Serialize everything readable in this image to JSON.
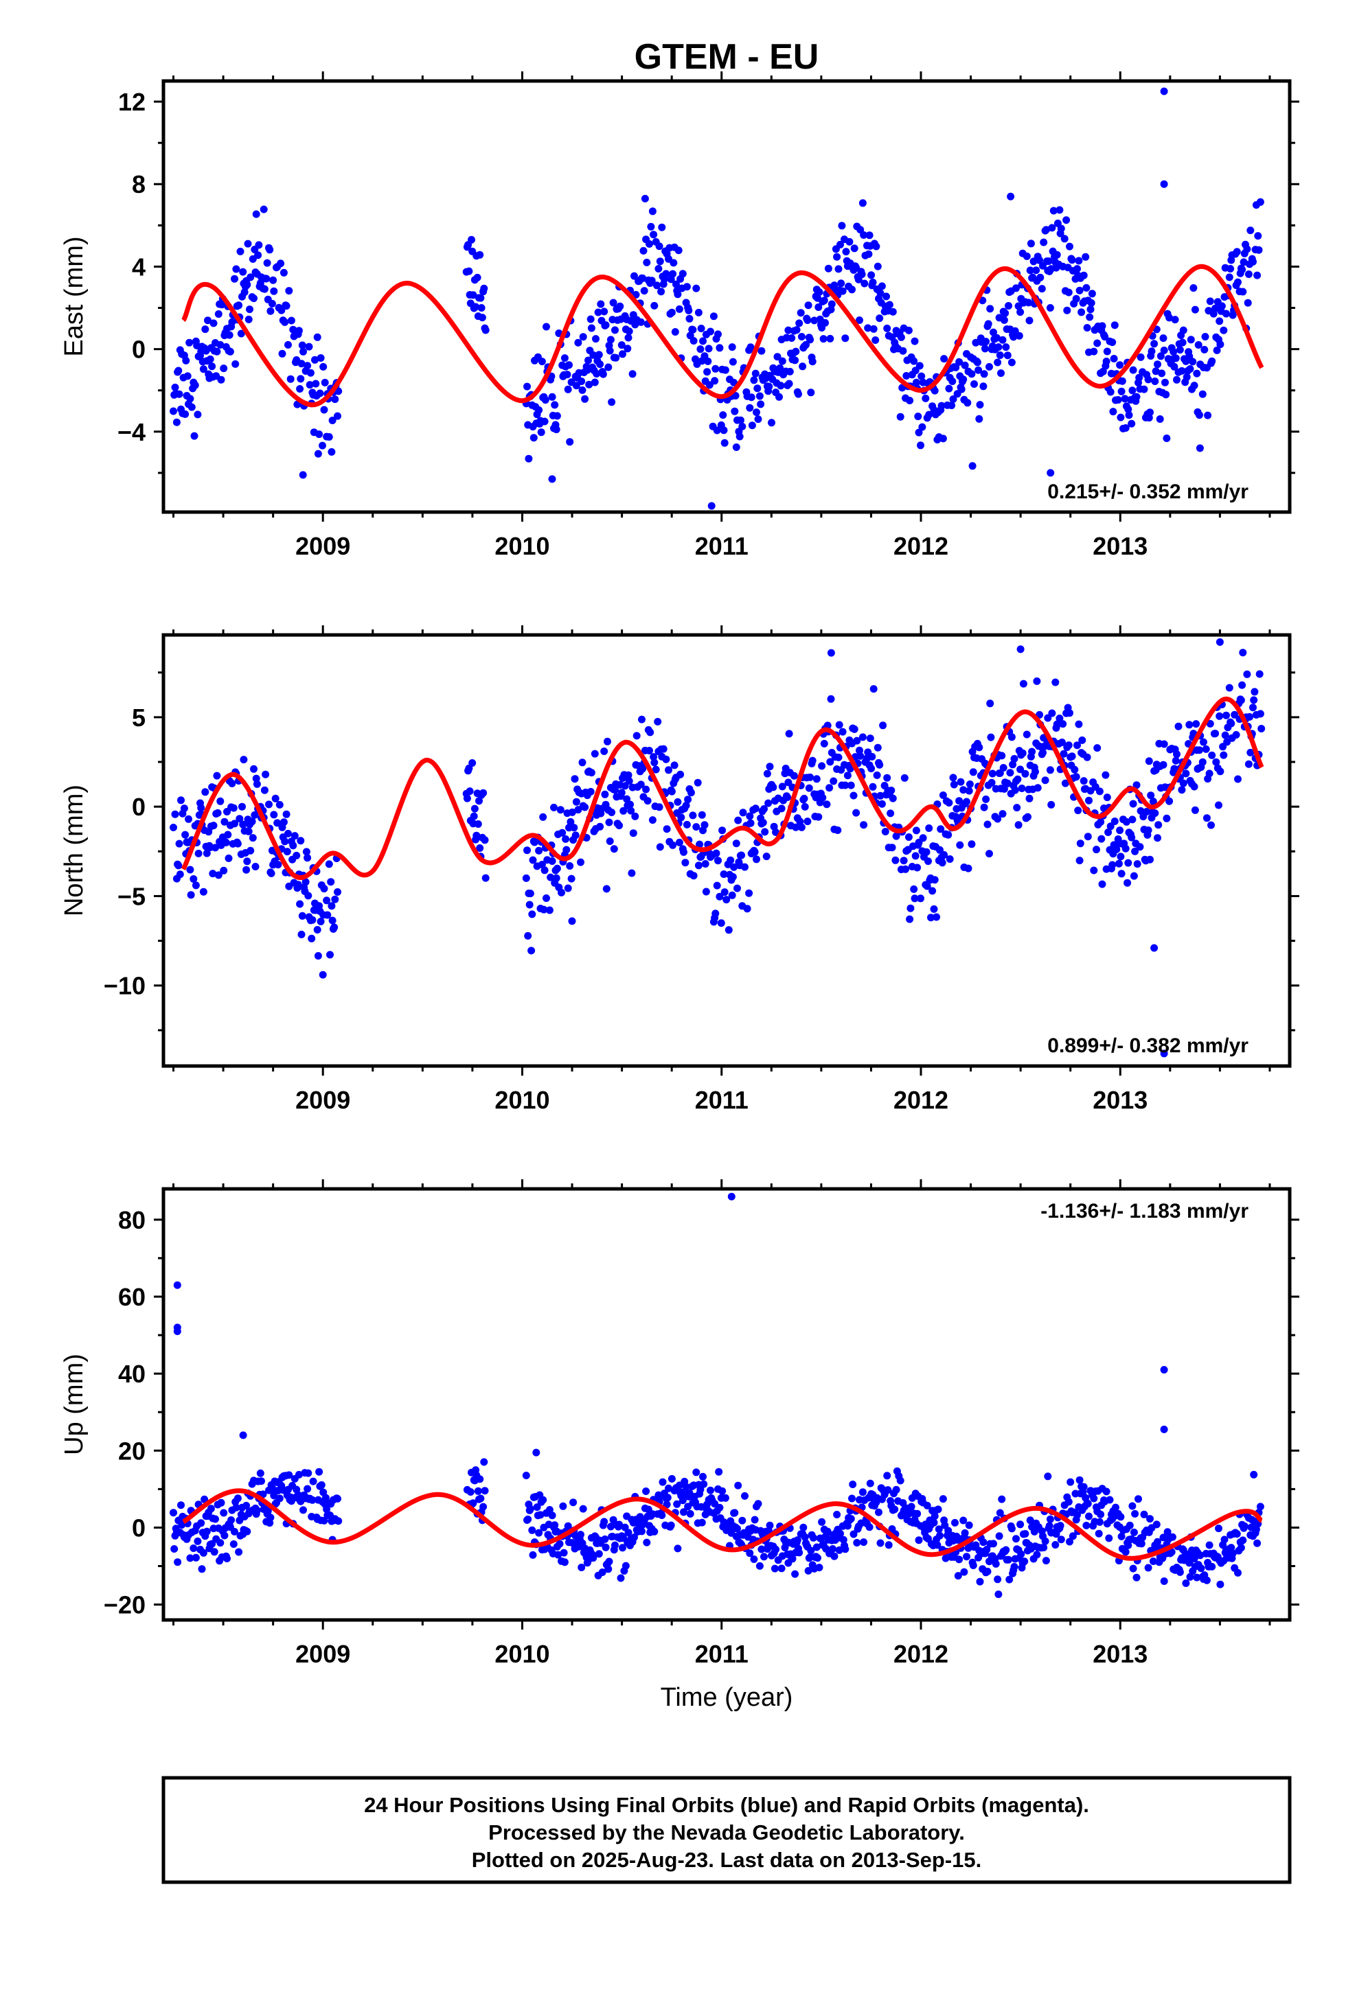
{
  "title": "GTEM - EU",
  "xlabel": "Time (year)",
  "colors": {
    "points": "#0000ff",
    "fit": "#ff0000",
    "frame": "#000000"
  },
  "footer": {
    "line1": "24 Hour Positions Using Final Orbits (blue) and Rapid Orbits (magenta).",
    "line2": "Processed by the Nevada Geodetic Laboratory.",
    "line3": "Plotted on 2025-Aug-23. Last data on 2013-Sep-15."
  },
  "chart_data": [
    {
      "type": "scatter",
      "name": "east",
      "ylabel": "East (mm)",
      "xlim": [
        2008.2,
        2013.85
      ],
      "ylim": [
        -7.9,
        13.0
      ],
      "x_ticks": [
        2009,
        2010,
        2011,
        2012,
        2013
      ],
      "y_ticks": [
        -4,
        0,
        4,
        8,
        12
      ],
      "rate": "0.215+/- 0.352 mm/yr",
      "rate_position": "bottom-right",
      "model": {
        "mean": 0.4,
        "trend_per_yr": 0.215,
        "amp_annual": 3.0,
        "phase_annual": 0.4,
        "amp_semi": 0.9,
        "phase_semi": 0.1
      },
      "point_mode": "random",
      "scatter_sd": 1.2,
      "data_spans": [
        [
          2008.25,
          2009.08
        ],
        [
          2009.72,
          2009.82
        ],
        [
          2010.02,
          2013.71
        ]
      ],
      "outliers": [
        [
          2013.22,
          12.5
        ],
        [
          2013.22,
          8.0
        ],
        [
          2012.45,
          7.4
        ],
        [
          2010.95,
          -7.6
        ],
        [
          2010.15,
          -6.3
        ],
        [
          2008.9,
          -6.1
        ],
        [
          2013.4,
          -4.8
        ],
        [
          2012.65,
          -6.0
        ]
      ],
      "fit_key_points": [
        [
          2008.3,
          1.4
        ],
        [
          2008.45,
          3.0
        ],
        [
          2008.95,
          -2.7
        ],
        [
          2009.42,
          3.2
        ],
        [
          2010.0,
          -2.5
        ],
        [
          2010.4,
          3.5
        ],
        [
          2011.0,
          -2.3
        ],
        [
          2011.4,
          3.7
        ],
        [
          2012.0,
          -2.0
        ],
        [
          2012.42,
          3.9
        ],
        [
          2012.9,
          -1.8
        ],
        [
          2013.4,
          4.0
        ],
        [
          2013.71,
          -0.9
        ]
      ]
    },
    {
      "type": "scatter",
      "name": "north",
      "ylabel": "North (mm)",
      "xlim": [
        2008.2,
        2013.85
      ],
      "ylim": [
        -14.5,
        9.6
      ],
      "x_ticks": [
        2009,
        2010,
        2011,
        2012,
        2013
      ],
      "y_ticks": [
        -10,
        -5,
        0,
        5
      ],
      "rate": "0.899+/- 0.382 mm/yr",
      "rate_position": "bottom-right",
      "model": {
        "mean": -0.6,
        "trend_per_yr": 0.899,
        "amp_annual": 2.6,
        "phase_annual": 0.3,
        "amp_semi": 1.0,
        "phase_semi": 0.6
      },
      "point_mode": "random",
      "scatter_sd": 1.5,
      "data_spans": [
        [
          2008.25,
          2009.08
        ],
        [
          2009.72,
          2009.82
        ],
        [
          2010.02,
          2013.71
        ]
      ],
      "outliers": [
        [
          2013.17,
          -7.9
        ],
        [
          2013.22,
          -13.8
        ],
        [
          2009.0,
          -9.4
        ],
        [
          2011.55,
          8.6
        ],
        [
          2012.5,
          8.8
        ],
        [
          2013.5,
          9.2
        ],
        [
          2012.05,
          -6.2
        ],
        [
          2010.25,
          -6.4
        ]
      ],
      "fit_key_points": [
        [
          2008.3,
          -3.5
        ],
        [
          2008.55,
          1.8
        ],
        [
          2008.85,
          -3.8
        ],
        [
          2009.05,
          -2.6
        ],
        [
          2009.25,
          -3.6
        ],
        [
          2009.52,
          2.6
        ],
        [
          2009.8,
          -3.0
        ],
        [
          2010.05,
          -1.6
        ],
        [
          2010.25,
          -2.7
        ],
        [
          2010.52,
          3.6
        ],
        [
          2010.85,
          -2.2
        ],
        [
          2011.1,
          -1.2
        ],
        [
          2011.28,
          -1.8
        ],
        [
          2011.52,
          4.3
        ],
        [
          2011.85,
          -1.2
        ],
        [
          2012.05,
          0.0
        ],
        [
          2012.2,
          -1.0
        ],
        [
          2012.52,
          5.3
        ],
        [
          2012.85,
          -0.4
        ],
        [
          2013.05,
          1.0
        ],
        [
          2013.2,
          0.2
        ],
        [
          2013.52,
          6.0
        ],
        [
          2013.71,
          2.2
        ]
      ]
    },
    {
      "type": "scatter",
      "name": "up",
      "ylabel": "Up (mm)",
      "xlim": [
        2008.2,
        2013.85
      ],
      "ylim": [
        -24,
        88
      ],
      "x_ticks": [
        2009,
        2010,
        2011,
        2012,
        2013
      ],
      "y_ticks": [
        -20,
        0,
        20,
        40,
        60,
        80
      ],
      "rate": "-1.136+/- 1.183 mm/yr",
      "rate_position": "top-right",
      "model": {
        "mean": 0.5,
        "trend_per_yr": -1.136,
        "amp_annual": 6.8,
        "phase_annual": 0.6,
        "amp_semi": 0.6,
        "phase_semi": 0.2
      },
      "point_mode": "random",
      "scatter_sd": 3.8,
      "data_spans": [
        [
          2008.25,
          2009.08
        ],
        [
          2009.72,
          2009.82
        ],
        [
          2010.02,
          2013.71
        ]
      ],
      "outliers": [
        [
          2008.27,
          63
        ],
        [
          2008.27,
          52
        ],
        [
          2008.27,
          51
        ],
        [
          2011.05,
          86
        ],
        [
          2013.22,
          41
        ],
        [
          2013.22,
          25.5
        ],
        [
          2010.07,
          19.5
        ],
        [
          2008.6,
          24
        ]
      ],
      "fit_key_points": [
        [
          2008.3,
          1.5
        ],
        [
          2008.6,
          9.5
        ],
        [
          2009.05,
          -3.8
        ],
        [
          2009.58,
          8.6
        ],
        [
          2010.05,
          -4.6
        ],
        [
          2010.58,
          7.4
        ],
        [
          2011.05,
          -5.8
        ],
        [
          2011.58,
          6.2
        ],
        [
          2012.05,
          -7.0
        ],
        [
          2012.58,
          5.0
        ],
        [
          2013.05,
          -8.0
        ],
        [
          2013.58,
          3.8
        ],
        [
          2013.71,
          1.8
        ]
      ]
    }
  ]
}
